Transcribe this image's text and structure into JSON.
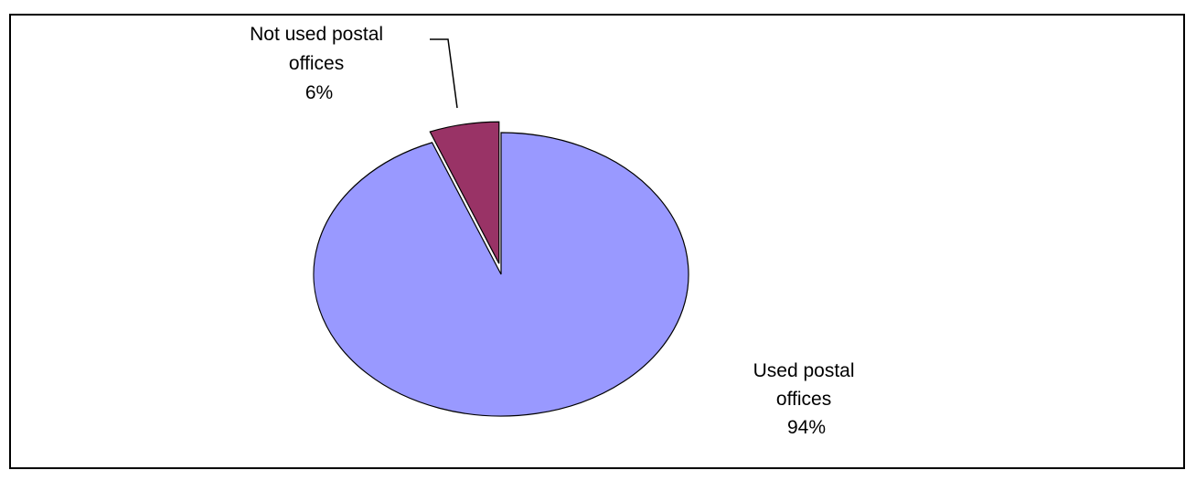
{
  "chart_data": {
    "type": "pie",
    "slices": [
      {
        "label_lines": [
          "Used postal",
          "offices"
        ],
        "value": 94,
        "value_label": "94%",
        "color": "#9999FF"
      },
      {
        "label_lines": [
          "Not used postal",
          "offices"
        ],
        "value": 6,
        "value_label": "6%",
        "color": "#993366"
      }
    ],
    "exploded_slice": 1,
    "legend": false
  }
}
